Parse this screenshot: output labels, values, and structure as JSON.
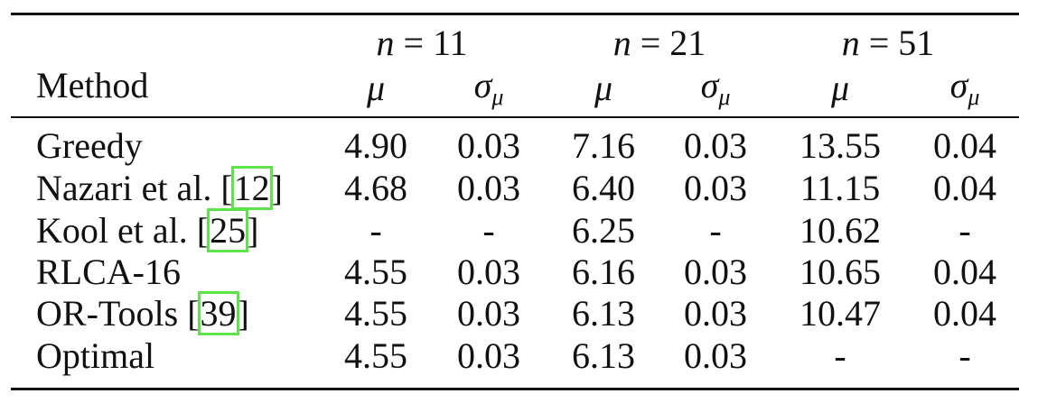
{
  "table": {
    "groups": [
      {
        "var": "n",
        "rest": " = 11"
      },
      {
        "var": "n",
        "rest": " = 21"
      },
      {
        "var": "n",
        "rest": " = 51"
      }
    ],
    "method_header": "Method",
    "subheaders": [
      {
        "base": "μ"
      },
      {
        "base": "σ",
        "sub": "μ"
      },
      {
        "base": "μ"
      },
      {
        "base": "σ",
        "sub": "μ"
      },
      {
        "base": "μ"
      },
      {
        "base": "σ",
        "sub": "μ"
      }
    ],
    "rows": [
      {
        "label": [
          "Greedy"
        ],
        "cells": [
          "4.90",
          "0.03",
          "7.16",
          "0.03",
          "13.55",
          "0.04"
        ]
      },
      {
        "label": [
          "Nazari et al. [",
          "12",
          "]"
        ],
        "cells": [
          "4.68",
          "0.03",
          "6.40",
          "0.03",
          "11.15",
          "0.04"
        ]
      },
      {
        "label": [
          "Kool et al. [",
          "25",
          "]"
        ],
        "cells": [
          "-",
          "-",
          "6.25",
          "-",
          "10.62",
          "-"
        ]
      },
      {
        "label": [
          "RLCA-16"
        ],
        "cells": [
          "4.55",
          "0.03",
          "6.16",
          "0.03",
          "10.65",
          "0.04"
        ]
      },
      {
        "label": [
          "OR-Tools [",
          "39",
          "]"
        ],
        "cells": [
          "4.55",
          "0.03",
          "6.13",
          "0.03",
          "10.47",
          "0.04"
        ]
      },
      {
        "label": [
          "Optimal"
        ],
        "cells": [
          "4.55",
          "0.03",
          "6.13",
          "0.03",
          "-",
          "-"
        ]
      }
    ]
  }
}
